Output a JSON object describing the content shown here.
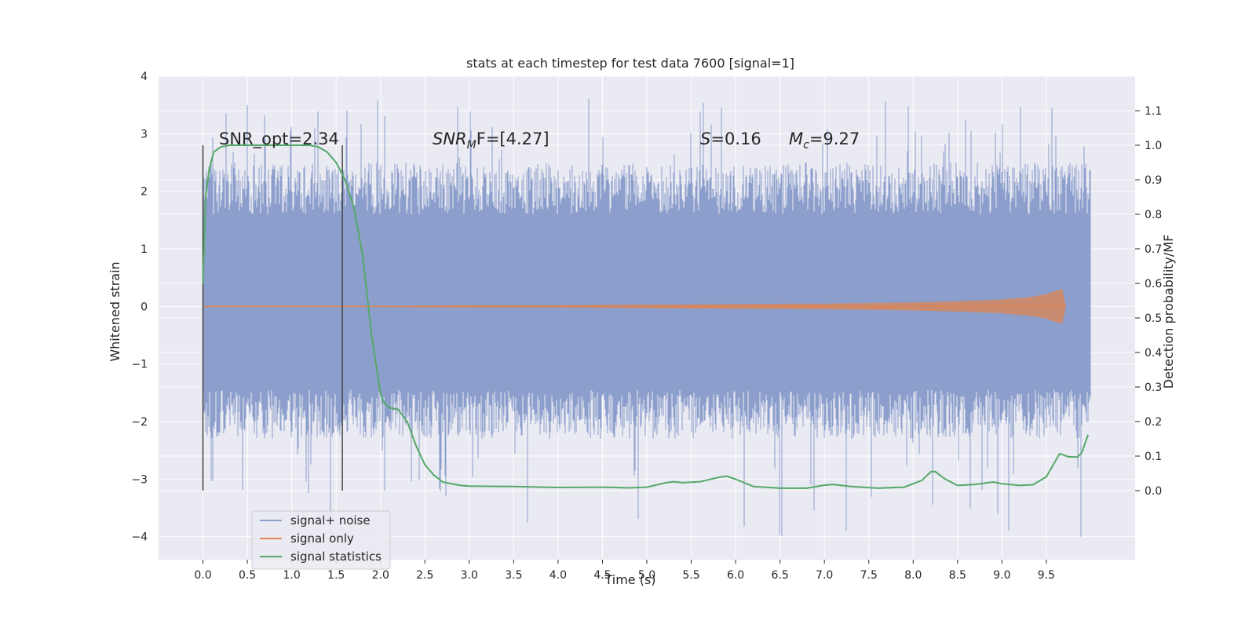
{
  "chart_data": {
    "type": "line",
    "title": "stats at each timestep for test data 7600 [signal=1]",
    "xlabel": "Time (s)",
    "ylabel_left": "Whitened strain",
    "ylabel_right": "Detection probability/MF",
    "xlim": [
      -0.5,
      10.5
    ],
    "ylim_left": [
      -4.4,
      4.0
    ],
    "ylim_right": [
      -0.2,
      1.2
    ],
    "x_ticks": [
      "0.0",
      "0.5",
      "1.0",
      "1.5",
      "2.0",
      "2.5",
      "3.0",
      "3.5",
      "4.0",
      "4.5",
      "5.0",
      "5.5",
      "6.0",
      "6.5",
      "7.0",
      "7.5",
      "8.0",
      "8.5",
      "9.0",
      "9.5"
    ],
    "y_ticks_left": [
      "4",
      "3",
      "2",
      "1",
      "0",
      "−1",
      "−2",
      "−3",
      "−4"
    ],
    "y_ticks_right": [
      "1.1",
      "1.0",
      "0.9",
      "0.8",
      "0.7",
      "0.6",
      "0.5",
      "0.4",
      "0.3",
      "0.2",
      "0.1",
      "0.0"
    ],
    "grid": true,
    "legend_position": "lower-left",
    "annotations": {
      "snr_opt": "SNR_opt=2.34",
      "snr_mf_main": "SNR",
      "snr_mf_sub": "M",
      "snr_mf_rest": "F=[4.27]",
      "s_var": "S",
      "s_val": "=0.16",
      "mc_main": "M",
      "mc_sub": "c",
      "mc_val": "=9.27"
    },
    "window_markers_x": [
      0.0,
      1.57
    ],
    "colors": {
      "noise": "#8c9fcc",
      "signal": "#dd8452",
      "stats": "#55a868",
      "background": "#eaeaf2",
      "grid": "#ffffff",
      "marker": "#444444"
    },
    "series": [
      {
        "name": "signal+ noise",
        "axis": "left",
        "x_range": [
          0.0,
          10.0
        ],
        "envelope": {
          "core": [
            -1.45,
            1.6
          ],
          "typical": [
            -2.3,
            2.5
          ],
          "extreme": [
            -4.05,
            3.62
          ]
        }
      },
      {
        "name": "signal only",
        "axis": "left",
        "x": [
          0.0,
          1.0,
          2.0,
          3.0,
          4.0,
          5.0,
          6.0,
          7.0,
          8.0,
          8.5,
          9.0,
          9.3,
          9.5,
          9.6,
          9.68,
          9.72
        ],
        "amplitude": [
          0.01,
          0.01,
          0.01,
          0.02,
          0.02,
          0.03,
          0.04,
          0.05,
          0.07,
          0.09,
          0.12,
          0.16,
          0.21,
          0.27,
          0.3,
          0.0
        ]
      },
      {
        "name": "signal statistics",
        "axis": "right",
        "x": [
          0.0,
          0.03,
          0.07,
          0.12,
          0.2,
          0.3,
          0.5,
          0.8,
          1.0,
          1.2,
          1.3,
          1.4,
          1.5,
          1.6,
          1.7,
          1.8,
          1.9,
          2.0,
          2.05,
          2.1,
          2.2,
          2.3,
          2.4,
          2.5,
          2.6,
          2.7,
          2.9,
          3.0,
          3.5,
          4.0,
          4.5,
          4.8,
          5.0,
          5.2,
          5.3,
          5.4,
          5.6,
          5.8,
          5.9,
          6.0,
          6.2,
          6.5,
          6.8,
          7.0,
          7.1,
          7.3,
          7.6,
          7.9,
          8.1,
          8.2,
          8.25,
          8.35,
          8.5,
          8.7,
          8.9,
          9.0,
          9.2,
          9.35,
          9.5,
          9.65,
          9.75,
          9.85,
          9.9,
          9.97
        ],
        "y": [
          0.6,
          0.85,
          0.93,
          0.98,
          0.995,
          1.0,
          1.0,
          1.0,
          1.0,
          1.0,
          0.995,
          0.98,
          0.95,
          0.9,
          0.82,
          0.68,
          0.45,
          0.28,
          0.25,
          0.24,
          0.235,
          0.2,
          0.13,
          0.075,
          0.045,
          0.025,
          0.015,
          0.013,
          0.012,
          0.009,
          0.01,
          0.008,
          0.01,
          0.022,
          0.026,
          0.023,
          0.026,
          0.038,
          0.042,
          0.033,
          0.012,
          0.007,
          0.007,
          0.016,
          0.018,
          0.012,
          0.007,
          0.01,
          0.03,
          0.055,
          0.055,
          0.035,
          0.015,
          0.018,
          0.025,
          0.02,
          0.015,
          0.017,
          0.04,
          0.107,
          0.098,
          0.097,
          0.11,
          0.162
        ]
      }
    ]
  }
}
